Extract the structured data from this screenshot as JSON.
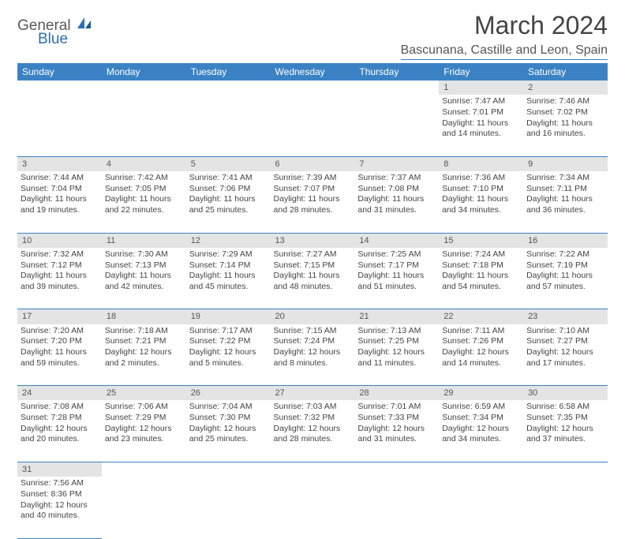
{
  "logo": {
    "text1": "General",
    "text2": "Blue"
  },
  "title": "March 2024",
  "location": "Bascunana, Castille and Leon, Spain",
  "colors": {
    "header_bg": "#3b82c4",
    "header_fg": "#ffffff",
    "daynum_bg": "#e4e4e4",
    "rule": "#3b82c4"
  },
  "days": [
    "Sunday",
    "Monday",
    "Tuesday",
    "Wednesday",
    "Thursday",
    "Friday",
    "Saturday"
  ],
  "weeks": [
    {
      "nums": [
        "",
        "",
        "",
        "",
        "",
        "1",
        "2"
      ],
      "cells": [
        null,
        null,
        null,
        null,
        null,
        {
          "sunrise": "Sunrise: 7:47 AM",
          "sunset": "Sunset: 7:01 PM",
          "daylight": "Daylight: 11 hours and 14 minutes."
        },
        {
          "sunrise": "Sunrise: 7:46 AM",
          "sunset": "Sunset: 7:02 PM",
          "daylight": "Daylight: 11 hours and 16 minutes."
        }
      ]
    },
    {
      "nums": [
        "3",
        "4",
        "5",
        "6",
        "7",
        "8",
        "9"
      ],
      "cells": [
        {
          "sunrise": "Sunrise: 7:44 AM",
          "sunset": "Sunset: 7:04 PM",
          "daylight": "Daylight: 11 hours and 19 minutes."
        },
        {
          "sunrise": "Sunrise: 7:42 AM",
          "sunset": "Sunset: 7:05 PM",
          "daylight": "Daylight: 11 hours and 22 minutes."
        },
        {
          "sunrise": "Sunrise: 7:41 AM",
          "sunset": "Sunset: 7:06 PM",
          "daylight": "Daylight: 11 hours and 25 minutes."
        },
        {
          "sunrise": "Sunrise: 7:39 AM",
          "sunset": "Sunset: 7:07 PM",
          "daylight": "Daylight: 11 hours and 28 minutes."
        },
        {
          "sunrise": "Sunrise: 7:37 AM",
          "sunset": "Sunset: 7:08 PM",
          "daylight": "Daylight: 11 hours and 31 minutes."
        },
        {
          "sunrise": "Sunrise: 7:36 AM",
          "sunset": "Sunset: 7:10 PM",
          "daylight": "Daylight: 11 hours and 34 minutes."
        },
        {
          "sunrise": "Sunrise: 7:34 AM",
          "sunset": "Sunset: 7:11 PM",
          "daylight": "Daylight: 11 hours and 36 minutes."
        }
      ]
    },
    {
      "nums": [
        "10",
        "11",
        "12",
        "13",
        "14",
        "15",
        "16"
      ],
      "cells": [
        {
          "sunrise": "Sunrise: 7:32 AM",
          "sunset": "Sunset: 7:12 PM",
          "daylight": "Daylight: 11 hours and 39 minutes."
        },
        {
          "sunrise": "Sunrise: 7:30 AM",
          "sunset": "Sunset: 7:13 PM",
          "daylight": "Daylight: 11 hours and 42 minutes."
        },
        {
          "sunrise": "Sunrise: 7:29 AM",
          "sunset": "Sunset: 7:14 PM",
          "daylight": "Daylight: 11 hours and 45 minutes."
        },
        {
          "sunrise": "Sunrise: 7:27 AM",
          "sunset": "Sunset: 7:15 PM",
          "daylight": "Daylight: 11 hours and 48 minutes."
        },
        {
          "sunrise": "Sunrise: 7:25 AM",
          "sunset": "Sunset: 7:17 PM",
          "daylight": "Daylight: 11 hours and 51 minutes."
        },
        {
          "sunrise": "Sunrise: 7:24 AM",
          "sunset": "Sunset: 7:18 PM",
          "daylight": "Daylight: 11 hours and 54 minutes."
        },
        {
          "sunrise": "Sunrise: 7:22 AM",
          "sunset": "Sunset: 7:19 PM",
          "daylight": "Daylight: 11 hours and 57 minutes."
        }
      ]
    },
    {
      "nums": [
        "17",
        "18",
        "19",
        "20",
        "21",
        "22",
        "23"
      ],
      "cells": [
        {
          "sunrise": "Sunrise: 7:20 AM",
          "sunset": "Sunset: 7:20 PM",
          "daylight": "Daylight: 11 hours and 59 minutes."
        },
        {
          "sunrise": "Sunrise: 7:18 AM",
          "sunset": "Sunset: 7:21 PM",
          "daylight": "Daylight: 12 hours and 2 minutes."
        },
        {
          "sunrise": "Sunrise: 7:17 AM",
          "sunset": "Sunset: 7:22 PM",
          "daylight": "Daylight: 12 hours and 5 minutes."
        },
        {
          "sunrise": "Sunrise: 7:15 AM",
          "sunset": "Sunset: 7:24 PM",
          "daylight": "Daylight: 12 hours and 8 minutes."
        },
        {
          "sunrise": "Sunrise: 7:13 AM",
          "sunset": "Sunset: 7:25 PM",
          "daylight": "Daylight: 12 hours and 11 minutes."
        },
        {
          "sunrise": "Sunrise: 7:11 AM",
          "sunset": "Sunset: 7:26 PM",
          "daylight": "Daylight: 12 hours and 14 minutes."
        },
        {
          "sunrise": "Sunrise: 7:10 AM",
          "sunset": "Sunset: 7:27 PM",
          "daylight": "Daylight: 12 hours and 17 minutes."
        }
      ]
    },
    {
      "nums": [
        "24",
        "25",
        "26",
        "27",
        "28",
        "29",
        "30"
      ],
      "cells": [
        {
          "sunrise": "Sunrise: 7:08 AM",
          "sunset": "Sunset: 7:28 PM",
          "daylight": "Daylight: 12 hours and 20 minutes."
        },
        {
          "sunrise": "Sunrise: 7:06 AM",
          "sunset": "Sunset: 7:29 PM",
          "daylight": "Daylight: 12 hours and 23 minutes."
        },
        {
          "sunrise": "Sunrise: 7:04 AM",
          "sunset": "Sunset: 7:30 PM",
          "daylight": "Daylight: 12 hours and 25 minutes."
        },
        {
          "sunrise": "Sunrise: 7:03 AM",
          "sunset": "Sunset: 7:32 PM",
          "daylight": "Daylight: 12 hours and 28 minutes."
        },
        {
          "sunrise": "Sunrise: 7:01 AM",
          "sunset": "Sunset: 7:33 PM",
          "daylight": "Daylight: 12 hours and 31 minutes."
        },
        {
          "sunrise": "Sunrise: 6:59 AM",
          "sunset": "Sunset: 7:34 PM",
          "daylight": "Daylight: 12 hours and 34 minutes."
        },
        {
          "sunrise": "Sunrise: 6:58 AM",
          "sunset": "Sunset: 7:35 PM",
          "daylight": "Daylight: 12 hours and 37 minutes."
        }
      ]
    },
    {
      "nums": [
        "31",
        "",
        "",
        "",
        "",
        "",
        ""
      ],
      "cells": [
        {
          "sunrise": "Sunrise: 7:56 AM",
          "sunset": "Sunset: 8:36 PM",
          "daylight": "Daylight: 12 hours and 40 minutes."
        },
        null,
        null,
        null,
        null,
        null,
        null
      ]
    }
  ]
}
